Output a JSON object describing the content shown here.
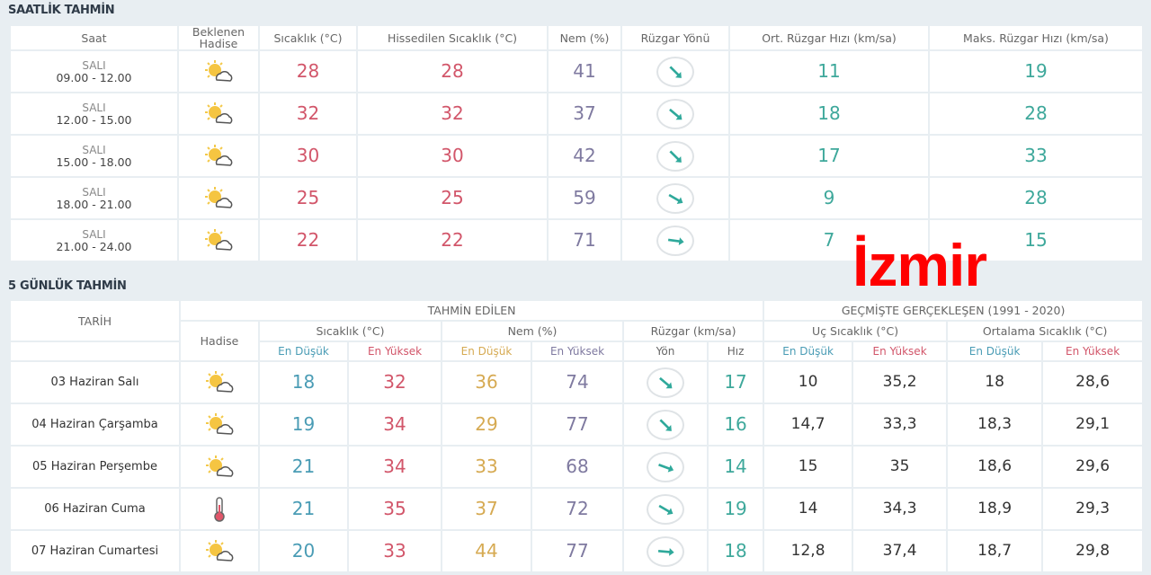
{
  "city": "İzmir",
  "hourly": {
    "title": "SAATLİK TAHMİN",
    "headers": [
      "Saat",
      "Beklenen Hadise",
      "Sıcaklık (°C)",
      "Hissedilen Sıcaklık (°C)",
      "Nem (%)",
      "Rüzgar Yönü",
      "Ort. Rüzgar Hızı (km/sa)",
      "Maks. Rüzgar Hızı (km/sa)"
    ],
    "rows": [
      {
        "day": "SALI",
        "time": "09.00 - 12.00",
        "icon": "partly-cloudy-icon",
        "temp": "28",
        "feels": "28",
        "humidity": "41",
        "wind_dir_deg": 45,
        "wind_avg": "11",
        "wind_max": "19"
      },
      {
        "day": "SALI",
        "time": "12.00 - 15.00",
        "icon": "partly-cloudy-icon",
        "temp": "32",
        "feels": "32",
        "humidity": "37",
        "wind_dir_deg": 40,
        "wind_avg": "18",
        "wind_max": "28"
      },
      {
        "day": "SALI",
        "time": "15.00 - 18.00",
        "icon": "partly-cloudy-icon",
        "temp": "30",
        "feels": "30",
        "humidity": "42",
        "wind_dir_deg": 45,
        "wind_avg": "17",
        "wind_max": "33"
      },
      {
        "day": "SALI",
        "time": "18.00 - 21.00",
        "icon": "partly-cloudy-icon",
        "temp": "25",
        "feels": "25",
        "humidity": "59",
        "wind_dir_deg": 30,
        "wind_avg": "9",
        "wind_max": "28"
      },
      {
        "day": "SALI",
        "time": "21.00 - 24.00",
        "icon": "partly-cloudy-icon",
        "temp": "22",
        "feels": "22",
        "humidity": "71",
        "wind_dir_deg": 8,
        "wind_avg": "7",
        "wind_max": "15"
      }
    ]
  },
  "daily": {
    "title": "5 GÜNLÜK TAHMİN",
    "h_date": "TARİH",
    "h_forecast": "TAHMİN EDİLEN",
    "h_past": "GEÇMİŞTE GERÇEKLEŞEN (1991 - 2020)",
    "h_event": "Hadise",
    "h_temp": "Sıcaklık (°C)",
    "h_hum": "Nem (%)",
    "h_wind": "Rüzgar (km/sa)",
    "h_extreme": "Uç Sıcaklık (°C)",
    "h_avg": "Ortalama Sıcaklık (°C)",
    "h_low": "En Düşük",
    "h_high": "En Yüksek",
    "h_dir": "Yön",
    "h_speed": "Hız",
    "rows": [
      {
        "date": "03 Haziran Salı",
        "icon": "partly-cloudy-icon",
        "tmin": "18",
        "tmax": "32",
        "hmin": "36",
        "hmax": "74",
        "wind_dir_deg": 40,
        "wind": "17",
        "ext_min": "10",
        "ext_max": "35,2",
        "avg_min": "18",
        "avg_max": "28,6"
      },
      {
        "date": "04 Haziran Çarşamba",
        "icon": "partly-cloudy-icon",
        "tmin": "19",
        "tmax": "34",
        "hmin": "29",
        "hmax": "77",
        "wind_dir_deg": 45,
        "wind": "16",
        "ext_min": "14,7",
        "ext_max": "33,3",
        "avg_min": "18,3",
        "avg_max": "29,1"
      },
      {
        "date": "05 Haziran Perşembe",
        "icon": "partly-cloudy-icon",
        "tmin": "21",
        "tmax": "34",
        "hmin": "33",
        "hmax": "68",
        "wind_dir_deg": 20,
        "wind": "14",
        "ext_min": "15",
        "ext_max": "35",
        "avg_min": "18,6",
        "avg_max": "29,6"
      },
      {
        "date": "06 Haziran Cuma",
        "icon": "thermometer-icon",
        "tmin": "21",
        "tmax": "35",
        "hmin": "37",
        "hmax": "72",
        "wind_dir_deg": 30,
        "wind": "19",
        "ext_min": "14",
        "ext_max": "34,3",
        "avg_min": "18,9",
        "avg_max": "29,3"
      },
      {
        "date": "07 Haziran Cumartesi",
        "icon": "partly-cloudy-icon",
        "tmin": "20",
        "tmax": "33",
        "hmin": "44",
        "hmax": "77",
        "wind_dir_deg": 5,
        "wind": "18",
        "ext_min": "12,8",
        "ext_max": "37,4",
        "avg_min": "18,7",
        "avg_max": "29,8"
      }
    ]
  }
}
